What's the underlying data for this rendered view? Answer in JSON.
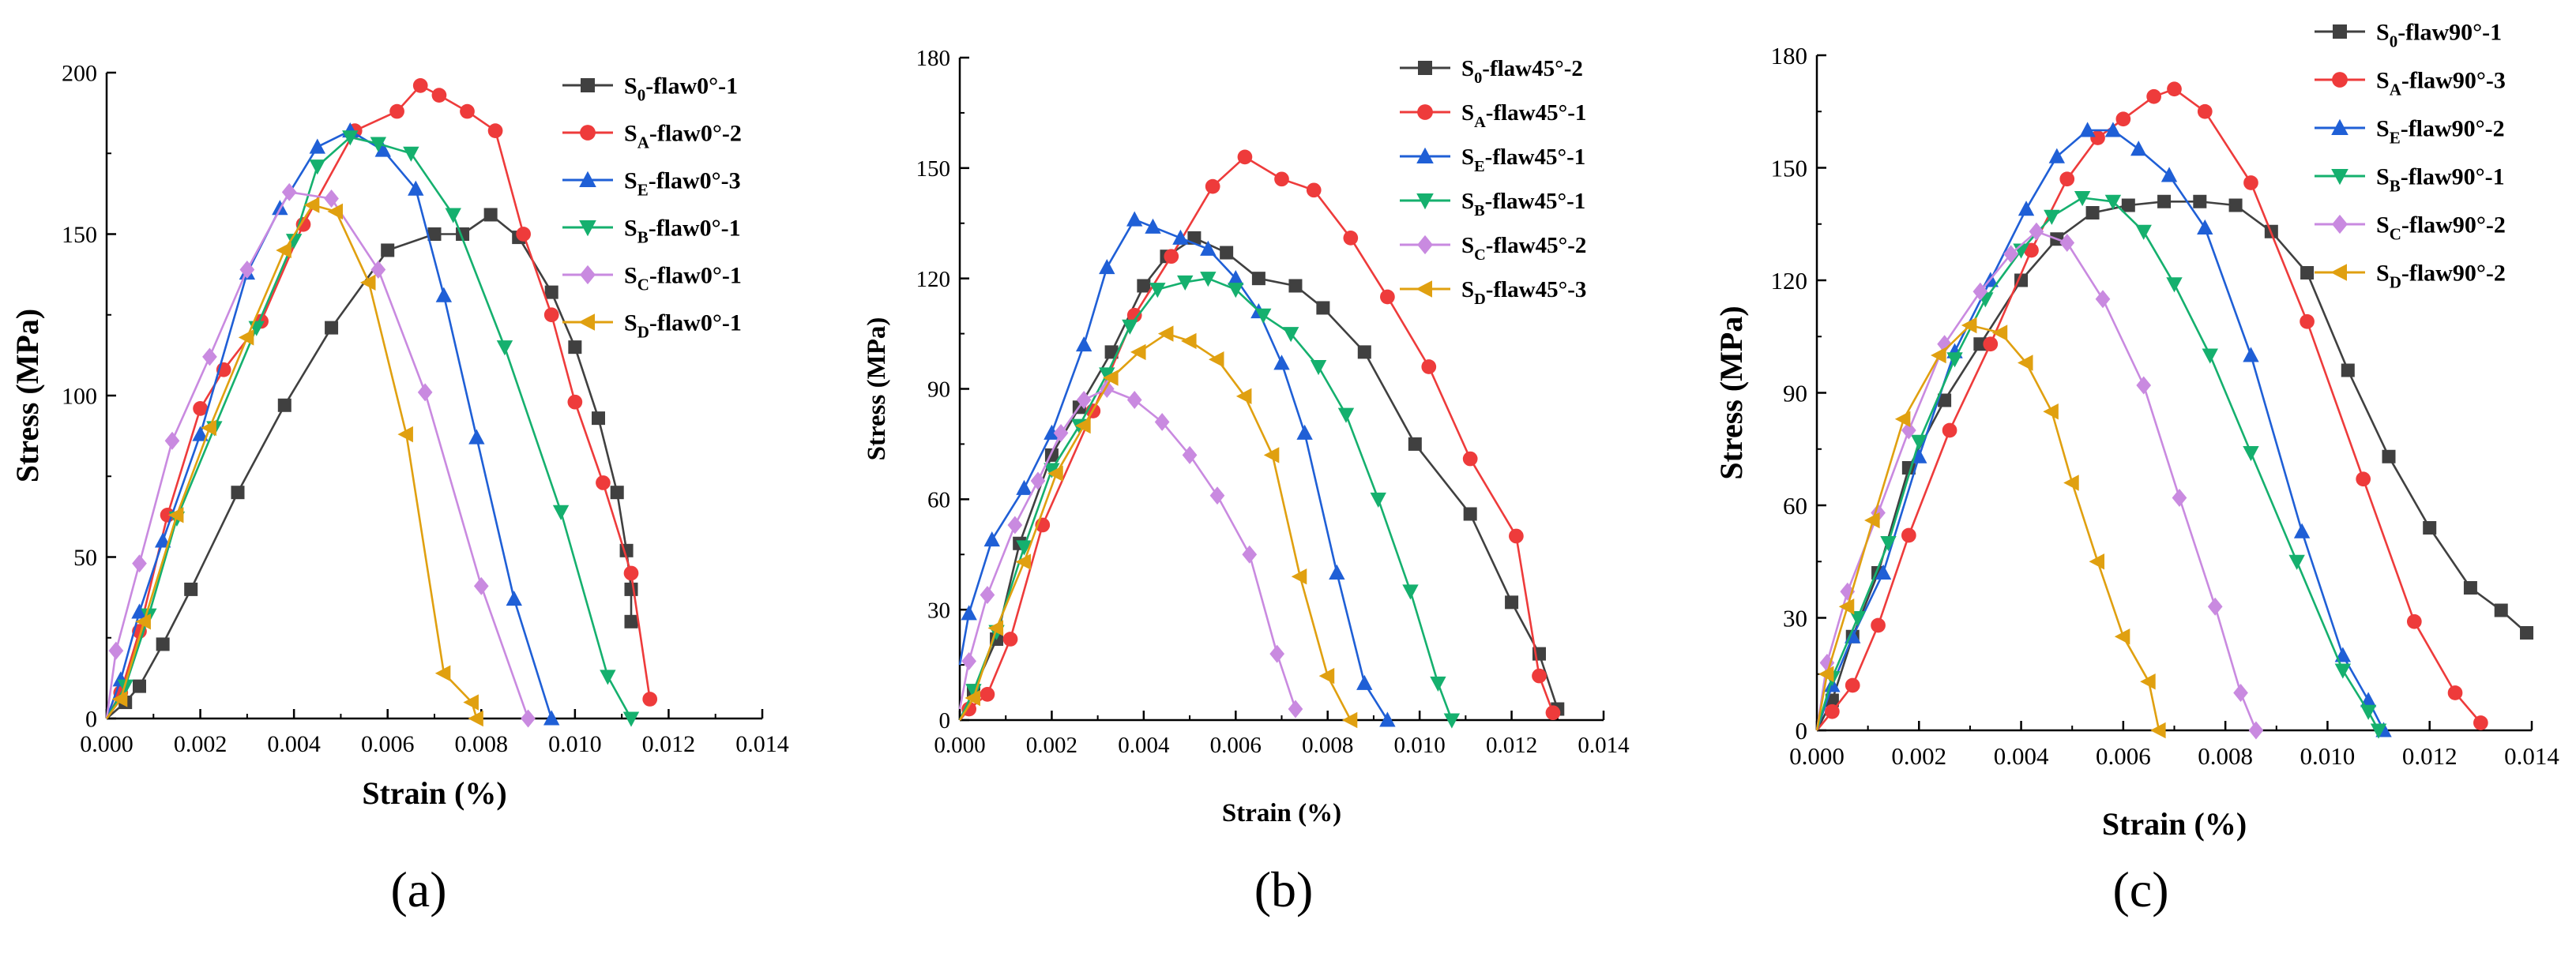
{
  "chart_data": [
    {
      "type": "line",
      "panel_label": "(a)",
      "xlabel": "Strain (%)",
      "ylabel": "Stress (MPa)",
      "xlim": [
        0,
        0.014
      ],
      "ylim": [
        0,
        200
      ],
      "xticks": [
        "0.000",
        "0.002",
        "0.004",
        "0.006",
        "0.008",
        "0.010",
        "0.012",
        "0.014"
      ],
      "yticks": [
        "0",
        "50",
        "100",
        "150",
        "200"
      ],
      "legend_position": "top-right",
      "series": [
        {
          "name": "S0-flaw0°-1",
          "base": "S",
          "sub": "0",
          "suffix": "-flaw0°-1",
          "color": "#404040",
          "marker": "square",
          "x": [
            0.0,
            0.0004,
            0.0007,
            0.0012,
            0.0018,
            0.0028,
            0.0038,
            0.0048,
            0.006,
            0.007,
            0.0076,
            0.0082,
            0.0088,
            0.0095,
            0.01,
            0.0105,
            0.0109,
            0.0111,
            0.0112,
            0.0112
          ],
          "y": [
            0,
            5,
            10,
            23,
            40,
            70,
            97,
            121,
            145,
            150,
            150,
            156,
            149,
            132,
            115,
            93,
            70,
            52,
            40,
            30
          ]
        },
        {
          "name": "SA-flaw0°-2",
          "base": "S",
          "sub": "A",
          "suffix": "-flaw0°-2",
          "color": "#ee3b3b",
          "marker": "circle",
          "x": [
            0.0,
            0.0003,
            0.0007,
            0.0013,
            0.002,
            0.0025,
            0.0033,
            0.0042,
            0.0053,
            0.0062,
            0.0067,
            0.0071,
            0.0077,
            0.0083,
            0.0089,
            0.0095,
            0.01,
            0.0106,
            0.0112,
            0.0116
          ],
          "y": [
            0,
            8,
            27,
            63,
            96,
            108,
            123,
            153,
            182,
            188,
            196,
            193,
            188,
            182,
            150,
            125,
            98,
            73,
            45,
            6
          ]
        },
        {
          "name": "SE-flaw0°-3",
          "base": "S",
          "sub": "E",
          "suffix": "-flaw0°-3",
          "color": "#1f5fd6",
          "marker": "triangle-up",
          "x": [
            0.0,
            0.0003,
            0.0007,
            0.0012,
            0.002,
            0.003,
            0.0037,
            0.0045,
            0.0052,
            0.0059,
            0.0066,
            0.0072,
            0.0079,
            0.0087,
            0.0095
          ],
          "y": [
            0,
            12,
            33,
            55,
            88,
            138,
            158,
            177,
            182,
            176,
            164,
            131,
            87,
            37,
            0
          ]
        },
        {
          "name": "SB-flaw0°-1",
          "base": "S",
          "sub": "B",
          "suffix": "-flaw0°-1",
          "color": "#15b06e",
          "marker": "triangle-down",
          "x": [
            0.0,
            0.0004,
            0.0009,
            0.0015,
            0.0023,
            0.0032,
            0.004,
            0.0045,
            0.0052,
            0.0058,
            0.0065,
            0.0074,
            0.0085,
            0.0097,
            0.0107,
            0.0112
          ],
          "y": [
            0,
            10,
            32,
            62,
            90,
            121,
            148,
            171,
            180,
            178,
            175,
            156,
            115,
            64,
            13,
            0
          ]
        },
        {
          "name": "SC-flaw0°-1",
          "base": "S",
          "sub": "C",
          "suffix": "-flaw0°-1",
          "color": "#c98ae0",
          "marker": "diamond",
          "x": [
            0.0,
            0.0002,
            0.0007,
            0.0014,
            0.0022,
            0.003,
            0.0039,
            0.0048,
            0.0058,
            0.0068,
            0.008,
            0.009
          ],
          "y": [
            0,
            21,
            48,
            86,
            112,
            139,
            163,
            161,
            139,
            101,
            41,
            0
          ]
        },
        {
          "name": "SD-flaw0°-1",
          "base": "S",
          "sub": "D",
          "suffix": "-flaw0°-1",
          "color": "#e0a010",
          "marker": "triangle-left",
          "x": [
            0.0,
            0.0003,
            0.0008,
            0.0015,
            0.0022,
            0.003,
            0.0038,
            0.0044,
            0.0049,
            0.0056,
            0.0064,
            0.0072,
            0.0078,
            0.0079
          ],
          "y": [
            0,
            6,
            30,
            63,
            90,
            118,
            145,
            159,
            157,
            135,
            88,
            14,
            5,
            0
          ]
        }
      ]
    },
    {
      "type": "line",
      "panel_label": "(b)",
      "xlabel": "Strain (%)",
      "ylabel": "Stress (MPa)",
      "xlim": [
        0,
        0.014
      ],
      "ylim": [
        0,
        180
      ],
      "xticks": [
        "0.000",
        "0.002",
        "0.004",
        "0.006",
        "0.008",
        "0.010",
        "0.012",
        "0.014"
      ],
      "yticks": [
        "0",
        "30",
        "60",
        "90",
        "120",
        "150",
        "180"
      ],
      "legend_position": "top-right",
      "series": [
        {
          "name": "S0-flaw45°-2",
          "base": "S",
          "sub": "0",
          "suffix": "-flaw45°-2",
          "color": "#404040",
          "marker": "square",
          "x": [
            0.0,
            0.0003,
            0.0008,
            0.0013,
            0.002,
            0.0026,
            0.0033,
            0.004,
            0.0045,
            0.0051,
            0.0058,
            0.0065,
            0.0073,
            0.0079,
            0.0088,
            0.0099,
            0.0111,
            0.012,
            0.0126,
            0.013
          ],
          "y": [
            0,
            8,
            22,
            48,
            72,
            85,
            100,
            118,
            126,
            131,
            127,
            120,
            118,
            112,
            100,
            75,
            56,
            32,
            18,
            3
          ]
        },
        {
          "name": "SA-flaw45°-1",
          "base": "S",
          "sub": "A",
          "suffix": "-flaw45°-1",
          "color": "#ee3b3b",
          "marker": "circle",
          "x": [
            0.0,
            0.0002,
            0.0006,
            0.0011,
            0.0018,
            0.0029,
            0.0038,
            0.0046,
            0.0055,
            0.0062,
            0.007,
            0.0077,
            0.0085,
            0.0093,
            0.0102,
            0.0111,
            0.0121,
            0.0126,
            0.0129
          ],
          "y": [
            0,
            3,
            7,
            22,
            53,
            84,
            110,
            126,
            145,
            153,
            147,
            144,
            131,
            115,
            96,
            71,
            50,
            12,
            2
          ]
        },
        {
          "name": "SE-flaw45°-1",
          "base": "S",
          "sub": "E",
          "suffix": "-flaw45°-1",
          "color": "#1f5fd6",
          "marker": "triangle-up",
          "x": [
            0.0,
            0.0002,
            0.0007,
            0.0014,
            0.002,
            0.0027,
            0.0032,
            0.0038,
            0.0042,
            0.0048,
            0.0054,
            0.006,
            0.0065,
            0.007,
            0.0075,
            0.0082,
            0.0088,
            0.0093
          ],
          "y": [
            15,
            29,
            49,
            63,
            78,
            102,
            123,
            136,
            134,
            131,
            128,
            120,
            111,
            97,
            78,
            40,
            10,
            0
          ]
        },
        {
          "name": "SB-flaw45°-1",
          "base": "S",
          "sub": "B",
          "suffix": "-flaw45°-1",
          "color": "#15b06e",
          "marker": "triangle-down",
          "x": [
            0.0,
            0.0003,
            0.0008,
            0.0014,
            0.002,
            0.0026,
            0.0032,
            0.0037,
            0.0043,
            0.0049,
            0.0054,
            0.006,
            0.0066,
            0.0072,
            0.0078,
            0.0084,
            0.0091,
            0.0098,
            0.0104,
            0.0107
          ],
          "y": [
            0,
            8,
            24,
            47,
            68,
            80,
            94,
            107,
            117,
            119,
            120,
            117,
            110,
            105,
            96,
            83,
            60,
            35,
            10,
            0
          ]
        },
        {
          "name": "SC-flaw45°-2",
          "base": "S",
          "sub": "C",
          "suffix": "-flaw45°-2",
          "color": "#c98ae0",
          "marker": "diamond",
          "x": [
            0.0,
            0.0002,
            0.0006,
            0.0012,
            0.0017,
            0.0022,
            0.0027,
            0.0032,
            0.0038,
            0.0044,
            0.005,
            0.0056,
            0.0063,
            0.0069,
            0.0073
          ],
          "y": [
            3,
            16,
            34,
            53,
            65,
            78,
            87,
            90,
            87,
            81,
            72,
            61,
            45,
            18,
            3
          ]
        },
        {
          "name": "SD-flaw45°-3",
          "base": "S",
          "sub": "D",
          "suffix": "-flaw45°-3",
          "color": "#e0a010",
          "marker": "triangle-left",
          "x": [
            0.0,
            0.0003,
            0.0008,
            0.0014,
            0.0021,
            0.0027,
            0.0033,
            0.0039,
            0.0045,
            0.005,
            0.0056,
            0.0062,
            0.0068,
            0.0074,
            0.008,
            0.0085
          ],
          "y": [
            0,
            6,
            25,
            43,
            67,
            80,
            93,
            100,
            105,
            103,
            98,
            88,
            72,
            39,
            12,
            0
          ]
        }
      ]
    },
    {
      "type": "line",
      "panel_label": "(c)",
      "xlabel": "Strain (%)",
      "ylabel": "Stress (MPa)",
      "xlim": [
        0,
        0.014
      ],
      "ylim": [
        0,
        180
      ],
      "xticks": [
        "0.000",
        "0.002",
        "0.004",
        "0.006",
        "0.008",
        "0.010",
        "0.012",
        "0.014"
      ],
      "yticks": [
        "0",
        "30",
        "60",
        "90",
        "120",
        "150",
        "180"
      ],
      "legend_position": "top-right",
      "series": [
        {
          "name": "S0-flaw90°-1",
          "base": "S",
          "sub": "0",
          "suffix": "-flaw90°-1",
          "color": "#404040",
          "marker": "square",
          "x": [
            0.0,
            0.0003,
            0.0007,
            0.0012,
            0.0018,
            0.0025,
            0.0032,
            0.004,
            0.0047,
            0.0054,
            0.0061,
            0.0068,
            0.0075,
            0.0082,
            0.0089,
            0.0096,
            0.0104,
            0.0112,
            0.012,
            0.0128,
            0.0134,
            0.0139
          ],
          "y": [
            0,
            8,
            25,
            42,
            70,
            88,
            103,
            120,
            131,
            138,
            140,
            141,
            141,
            140,
            133,
            122,
            96,
            73,
            54,
            38,
            32,
            26
          ]
        },
        {
          "name": "SA-flaw90°-3",
          "base": "S",
          "sub": "A",
          "suffix": "-flaw90°-3",
          "color": "#ee3b3b",
          "marker": "circle",
          "x": [
            0.0,
            0.0003,
            0.0007,
            0.0012,
            0.0018,
            0.0026,
            0.0034,
            0.0042,
            0.0049,
            0.0055,
            0.006,
            0.0066,
            0.007,
            0.0076,
            0.0085,
            0.0096,
            0.0107,
            0.0117,
            0.0125,
            0.013
          ],
          "y": [
            0,
            5,
            12,
            28,
            52,
            80,
            103,
            128,
            147,
            158,
            163,
            169,
            171,
            165,
            146,
            109,
            67,
            29,
            10,
            2
          ]
        },
        {
          "name": "SE-flaw90°-2",
          "base": "S",
          "sub": "E",
          "suffix": "-flaw90°-2",
          "color": "#1f5fd6",
          "marker": "triangle-up",
          "x": [
            0.0,
            0.0003,
            0.0007,
            0.0013,
            0.002,
            0.0027,
            0.0034,
            0.0041,
            0.0047,
            0.0053,
            0.0058,
            0.0063,
            0.0069,
            0.0076,
            0.0085,
            0.0095,
            0.0103,
            0.0108,
            0.0111
          ],
          "y": [
            0,
            12,
            25,
            42,
            73,
            101,
            120,
            139,
            153,
            160,
            160,
            155,
            148,
            134,
            100,
            53,
            20,
            8,
            0
          ]
        },
        {
          "name": "SB-flaw90°-1",
          "base": "S",
          "sub": "B",
          "suffix": "-flaw90°-1",
          "color": "#15b06e",
          "marker": "triangle-down",
          "x": [
            0.0,
            0.0003,
            0.0008,
            0.0014,
            0.002,
            0.0027,
            0.0033,
            0.004,
            0.0046,
            0.0052,
            0.0058,
            0.0064,
            0.007,
            0.0077,
            0.0085,
            0.0094,
            0.0103,
            0.0108,
            0.011
          ],
          "y": [
            0,
            14,
            30,
            50,
            77,
            99,
            115,
            128,
            137,
            142,
            141,
            133,
            119,
            100,
            74,
            45,
            16,
            5,
            0
          ]
        },
        {
          "name": "SC-flaw90°-2",
          "base": "S",
          "sub": "C",
          "suffix": "-flaw90°-2",
          "color": "#c98ae0",
          "marker": "diamond",
          "x": [
            0.0,
            0.0002,
            0.0006,
            0.0012,
            0.0018,
            0.0025,
            0.0032,
            0.0038,
            0.0043,
            0.0049,
            0.0056,
            0.0064,
            0.0071,
            0.0078,
            0.0083,
            0.0086
          ],
          "y": [
            0,
            18,
            37,
            58,
            80,
            103,
            117,
            127,
            133,
            130,
            115,
            92,
            62,
            33,
            10,
            0
          ]
        },
        {
          "name": "SD-flaw90°-2",
          "base": "S",
          "sub": "D",
          "suffix": "-flaw90°-2",
          "color": "#e0a010",
          "marker": "triangle-left",
          "x": [
            0.0,
            0.0002,
            0.0006,
            0.0011,
            0.0017,
            0.0024,
            0.003,
            0.0036,
            0.0041,
            0.0046,
            0.005,
            0.0055,
            0.006,
            0.0065,
            0.0067
          ],
          "y": [
            0,
            15,
            33,
            56,
            83,
            100,
            108,
            106,
            98,
            85,
            66,
            45,
            25,
            13,
            0
          ]
        }
      ]
    }
  ]
}
